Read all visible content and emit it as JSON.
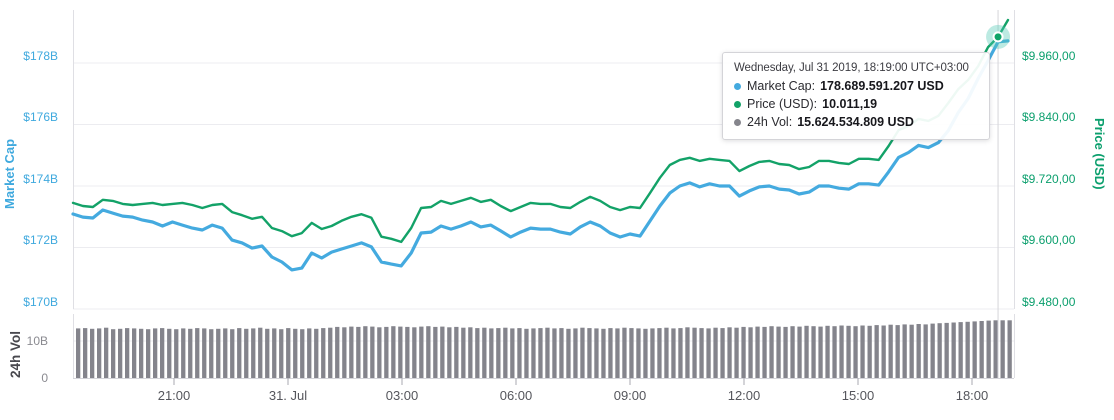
{
  "axes": {
    "left_title": "Market Cap",
    "right_title": "Price (USD)",
    "volume_title": "24h Vol",
    "left_ticks": [
      "$178B",
      "$176B",
      "$174B",
      "$172B",
      "$170B"
    ],
    "right_ticks": [
      "$9.960,00",
      "$9.840,00",
      "$9.720,00",
      "$9.600,00",
      "$9.480,00"
    ],
    "volume_ticks": [
      "10B",
      "0"
    ],
    "x_ticks": [
      "21:00",
      "31. Jul",
      "03:00",
      "06:00",
      "09:00",
      "12:00",
      "15:00",
      "18:00"
    ]
  },
  "tooltip": {
    "timestamp": "Wednesday, Jul 31 2019, 18:19:00 UTC+03:00",
    "rows": [
      {
        "label": "Market Cap:",
        "value": "178.689.591.207 USD",
        "dot_color": "#44AADF"
      },
      {
        "label": "Price (USD):",
        "value": "10.011,19",
        "dot_color": "#13A268"
      },
      {
        "label": "24h Vol:",
        "value": "15.624.534.809 USD",
        "dot_color": "#85858C"
      }
    ]
  },
  "colors": {
    "market_cap_line": "#44AADF",
    "price_line": "#13A268",
    "volume_bar": "#84848C",
    "left_axis_text": "#3FA9DE",
    "right_axis_text": "#0B9F6D",
    "marker_fill": "#0FA468",
    "marker_halo": "rgba(78,199,180,0.38)",
    "gridline": "#ECECF0",
    "crosshair": "#D5D5DA"
  },
  "chart_data": {
    "type": "line",
    "title": "",
    "x_start": "Jul 30 2019, ~18:19 UTC+03:00",
    "x_end": "Jul 31 2019, ~18:19 UTC+03:00",
    "x_tick_labels": [
      "21:00",
      "31. Jul",
      "03:00",
      "06:00",
      "09:00",
      "12:00",
      "15:00",
      "18:00"
    ],
    "grid": true,
    "legend_position": "none",
    "marker_index": 93,
    "highlighted_point": {
      "time": "Wednesday, Jul 31 2019, 18:19:00 UTC+03:00",
      "market_cap_usd": "178.689.591.207",
      "price_usd": "10.011,19",
      "volume_24h_usd": "15.624.534.809"
    },
    "series": [
      {
        "name": "Market Cap",
        "unit": "USD billions",
        "axis": "left",
        "color": "#44AADF",
        "stroke_width": 3.2,
        "ylim": [
          169.7,
          179.0
        ],
        "ytick_values": [
          178,
          176,
          174,
          172,
          170
        ],
        "values": [
          173.09,
          172.99,
          172.96,
          173.22,
          173.12,
          173.02,
          172.99,
          172.89,
          172.83,
          172.7,
          172.83,
          172.73,
          172.63,
          172.57,
          172.73,
          172.63,
          172.24,
          172.15,
          171.98,
          172.05,
          171.69,
          171.53,
          171.27,
          171.33,
          171.82,
          171.66,
          171.85,
          171.95,
          172.05,
          172.15,
          172.02,
          171.53,
          171.46,
          171.4,
          171.82,
          172.47,
          172.5,
          172.7,
          172.6,
          172.7,
          172.83,
          172.67,
          172.73,
          172.54,
          172.34,
          172.5,
          172.63,
          172.6,
          172.6,
          172.5,
          172.44,
          172.67,
          172.83,
          172.7,
          172.47,
          172.34,
          172.44,
          172.37,
          172.86,
          173.35,
          173.77,
          174.0,
          174.1,
          173.97,
          174.07,
          174.0,
          174.0,
          173.67,
          173.84,
          173.97,
          174.0,
          173.9,
          173.87,
          173.74,
          173.8,
          174.0,
          174.0,
          173.93,
          173.9,
          174.07,
          174.07,
          174.03,
          174.46,
          174.93,
          175.09,
          175.32,
          175.25,
          175.41,
          175.8,
          176.39,
          176.85,
          177.5,
          178.08,
          178.689,
          178.72
        ]
      },
      {
        "name": "Price (USD)",
        "unit": "USD",
        "axis": "right",
        "color": "#13A268",
        "stroke_width": 2.4,
        "ylim": [
          9420,
          10080
        ],
        "ytick_values": [
          9960,
          9840,
          9720,
          9600,
          9480
        ],
        "values": [
          9687,
          9681,
          9679,
          9693,
          9691,
          9685,
          9683,
          9685,
          9687,
          9683,
          9685,
          9687,
          9683,
          9677,
          9683,
          9685,
          9669,
          9663,
          9656,
          9660,
          9638,
          9632,
          9622,
          9628,
          9648,
          9636,
          9642,
          9652,
          9660,
          9665,
          9658,
          9621,
          9617,
          9611,
          9638,
          9677,
          9679,
          9691,
          9685,
          9691,
          9697,
          9689,
          9693,
          9681,
          9671,
          9679,
          9687,
          9685,
          9685,
          9679,
          9677,
          9689,
          9699,
          9691,
          9679,
          9673,
          9679,
          9677,
          9706,
          9736,
          9761,
          9771,
          9775,
          9769,
          9773,
          9771,
          9769,
          9749,
          9759,
          9767,
          9769,
          9763,
          9761,
          9753,
          9757,
          9769,
          9769,
          9765,
          9763,
          9773,
          9773,
          9771,
          9798,
          9829,
          9837,
          9851,
          9847,
          9857,
          9882,
          9909,
          9927,
          9954,
          9991,
          10011,
          10044
        ]
      }
    ],
    "volume": {
      "name": "24h Vol",
      "unit": "USD billions",
      "color": "#84848C",
      "ylim": [
        0,
        16.5
      ],
      "ytick_values": [
        10,
        0
      ],
      "values": [
        13.4,
        13.5,
        13.3,
        13.4,
        13.6,
        13.2,
        13.3,
        13.5,
        13.4,
        13.3,
        13.2,
        13.4,
        13.5,
        13.3,
        13.2,
        13.4,
        13.3,
        13.5,
        13.4,
        13.2,
        13.3,
        13.4,
        13.2,
        13.5,
        13.3,
        13.4,
        13.6,
        13.3,
        13.4,
        13.2,
        13.5,
        13.3,
        13.2,
        13.4,
        13.3,
        13.5,
        13.6,
        13.8,
        13.7,
        13.9,
        13.8,
        14.0,
        13.9,
        13.7,
        13.8,
        14.0,
        13.9,
        13.8,
        13.7,
        13.9,
        14.0,
        13.8,
        13.9,
        13.7,
        13.8,
        13.6,
        13.7,
        13.5,
        13.6,
        13.4,
        13.5,
        13.6,
        13.4,
        13.5,
        13.3,
        13.4,
        13.5,
        13.6,
        13.4,
        13.5,
        13.3,
        13.4,
        13.6,
        13.5,
        13.4,
        13.3,
        13.5,
        13.4,
        13.6,
        13.5,
        13.4,
        13.3,
        13.4,
        13.5,
        13.6,
        13.4,
        13.5,
        13.7,
        13.6,
        13.5,
        13.4,
        13.6,
        13.5,
        13.7,
        13.6,
        13.8,
        13.7,
        13.9,
        13.8,
        14.0,
        13.9,
        13.8,
        14.0,
        13.9,
        14.1,
        14.0,
        13.9,
        14.1,
        14.0,
        14.2,
        14.1,
        14.0,
        14.2,
        14.1,
        14.3,
        14.2,
        14.4,
        14.3,
        14.5,
        14.4,
        14.6,
        14.5,
        14.7,
        14.8,
        14.9,
        15.0,
        15.1,
        15.2,
        15.3,
        15.4,
        15.5,
        15.6,
        15.6,
        15.6
      ]
    }
  }
}
